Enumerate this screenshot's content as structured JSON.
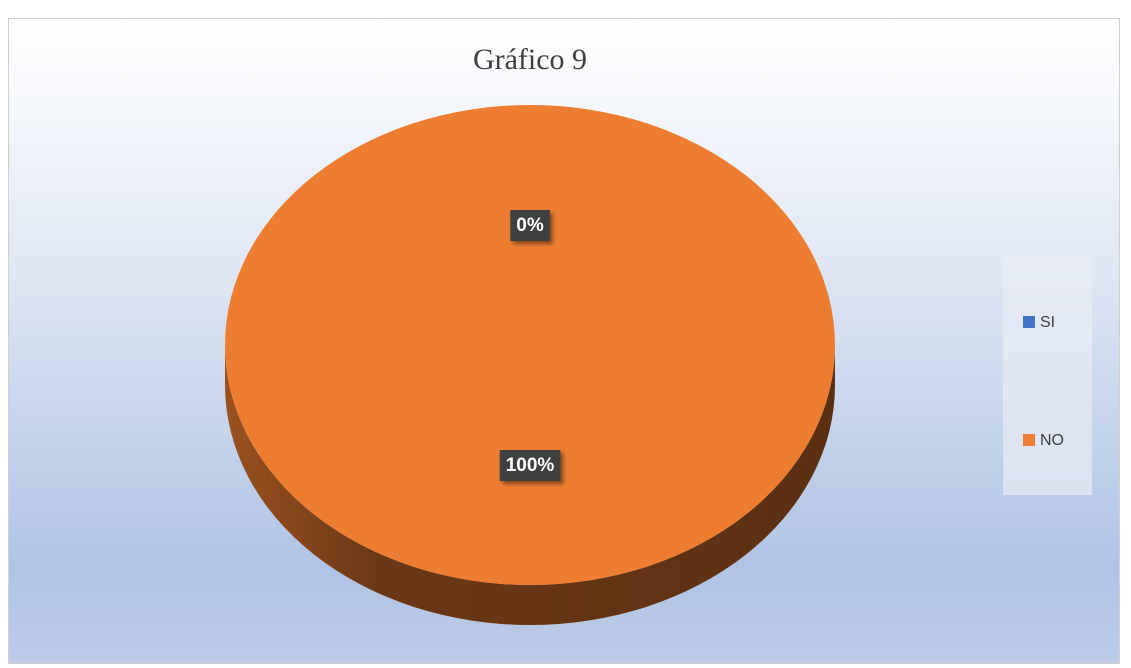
{
  "chart_data": {
    "type": "pie",
    "title": "Gráfico 9",
    "categories": [
      "SI",
      "NO"
    ],
    "values": [
      0,
      100
    ],
    "value_labels": [
      "0%",
      "100%"
    ],
    "colors": [
      "#4472c4",
      "#ed7d31"
    ],
    "legend": "right"
  }
}
